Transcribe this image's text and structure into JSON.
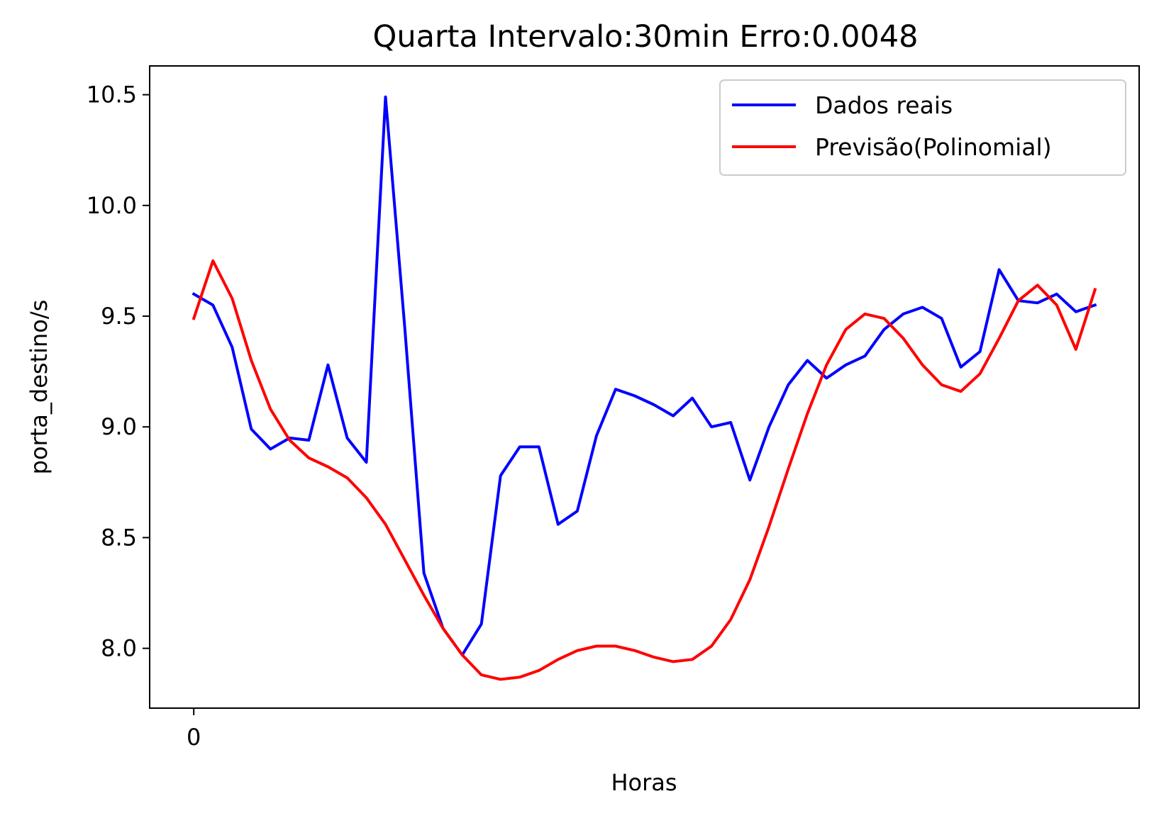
{
  "chart_data": {
    "type": "line",
    "title": "Quarta Intervalo:30min Erro:0.0048",
    "xlabel": "Horas",
    "ylabel": "porta_destino/s",
    "xlim": [
      -2.3,
      49.3
    ],
    "ylim": [
      7.73,
      10.63
    ],
    "x_ticks": [
      {
        "value": 0,
        "label": "0"
      }
    ],
    "y_ticks": [
      {
        "value": 8.0,
        "label": "8.0"
      },
      {
        "value": 8.5,
        "label": "8.5"
      },
      {
        "value": 9.0,
        "label": "9.0"
      },
      {
        "value": 9.5,
        "label": "9.5"
      },
      {
        "value": 10.0,
        "label": "10.0"
      },
      {
        "value": 10.5,
        "label": "10.5"
      }
    ],
    "grid": false,
    "legend_position": "top-right",
    "series": [
      {
        "name": "Dados reais",
        "color": "#0000ff",
        "x": [
          0,
          1,
          2,
          3,
          4,
          5,
          6,
          7,
          8,
          9,
          10,
          11,
          12,
          13,
          14,
          15,
          16,
          17,
          18,
          19,
          20,
          21,
          22,
          23,
          24,
          25,
          26,
          27,
          28,
          29,
          30,
          31,
          32,
          33,
          34,
          35,
          36,
          37,
          38,
          39,
          40,
          41,
          42,
          43,
          44,
          45,
          46,
          47
        ],
        "values": [
          9.6,
          9.55,
          9.36,
          8.99,
          8.9,
          8.95,
          8.94,
          9.28,
          8.95,
          8.84,
          10.49,
          9.45,
          8.34,
          8.09,
          7.97,
          8.11,
          8.78,
          8.91,
          8.91,
          8.56,
          8.62,
          8.96,
          9.17,
          9.14,
          9.1,
          9.05,
          9.13,
          9.0,
          9.02,
          8.76,
          9.0,
          9.19,
          9.3,
          9.22,
          9.28,
          9.32,
          9.44,
          9.51,
          9.54,
          9.49,
          9.27,
          9.34,
          9.71,
          9.57,
          9.56,
          9.6,
          9.52,
          9.55
        ]
      },
      {
        "name": "Previsão(Polinomial)",
        "color": "#ff0000",
        "x": [
          0,
          1,
          2,
          3,
          4,
          5,
          6,
          7,
          8,
          9,
          10,
          11,
          12,
          13,
          14,
          15,
          16,
          17,
          18,
          19,
          20,
          21,
          22,
          23,
          24,
          25,
          26,
          27,
          28,
          29,
          30,
          31,
          32,
          33,
          34,
          35,
          36,
          37,
          38,
          39,
          40,
          41,
          42,
          43,
          44,
          45,
          46,
          47
        ],
        "values": [
          9.49,
          9.75,
          9.58,
          9.3,
          9.08,
          8.94,
          8.86,
          8.82,
          8.77,
          8.68,
          8.56,
          8.4,
          8.24,
          8.09,
          7.97,
          7.88,
          7.86,
          7.87,
          7.9,
          7.95,
          7.99,
          8.01,
          8.01,
          7.99,
          7.96,
          7.94,
          7.95,
          8.01,
          8.13,
          8.31,
          8.55,
          8.81,
          9.06,
          9.28,
          9.44,
          9.51,
          9.49,
          9.4,
          9.28,
          9.19,
          9.16,
          9.24,
          9.4,
          9.57,
          9.64,
          9.55,
          9.35,
          9.62
        ]
      }
    ]
  }
}
